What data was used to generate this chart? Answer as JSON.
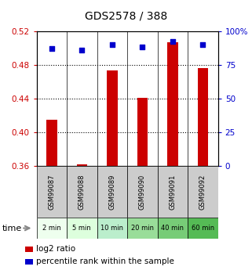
{
  "title": "GDS2578 / 388",
  "samples": [
    "GSM99087",
    "GSM99088",
    "GSM99089",
    "GSM99090",
    "GSM99091",
    "GSM99092"
  ],
  "time_labels": [
    "2 min",
    "5 min",
    "10 min",
    "20 min",
    "40 min",
    "60 min"
  ],
  "log2_values": [
    0.415,
    0.362,
    0.473,
    0.441,
    0.507,
    0.476
  ],
  "percentile_values": [
    87,
    86,
    90,
    88,
    92,
    90
  ],
  "ylim_left": [
    0.36,
    0.52
  ],
  "ylim_right": [
    0,
    100
  ],
  "yticks_left": [
    0.36,
    0.4,
    0.44,
    0.48,
    0.52
  ],
  "yticks_right": [
    0,
    25,
    50,
    75,
    100
  ],
  "ytick_labels_left": [
    "0.36",
    "0.40",
    "0.44",
    "0.48",
    "0.52"
  ],
  "ytick_labels_right": [
    "0",
    "25",
    "50",
    "75",
    "100%"
  ],
  "bar_color": "#cc0000",
  "dot_color": "#0000cc",
  "bar_bottom": 0.36,
  "time_row_colors": [
    "#eeffee",
    "#ddffdd",
    "#bbeecc",
    "#99dd99",
    "#77cc77",
    "#55bb55"
  ],
  "sample_row_bg": "#cccccc",
  "legend_bar_label": "log2 ratio",
  "legend_dot_label": "percentile rank within the sample",
  "x_positions": [
    0,
    1,
    2,
    3,
    4,
    5
  ]
}
